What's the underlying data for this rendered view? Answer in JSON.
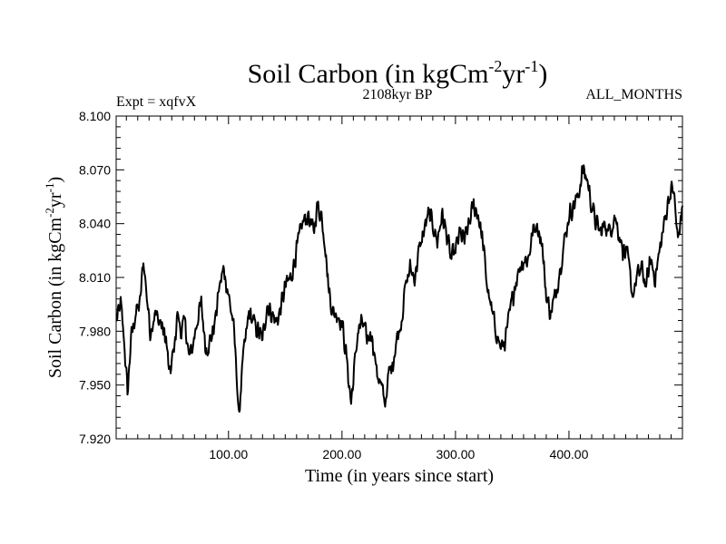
{
  "chart_data": {
    "type": "line",
    "title": "Soil Carbon (in kgCm",
    "title_exp1": "-2",
    "title_mid": "yr",
    "title_exp2": "-1",
    "title_end": ")",
    "subtitle_left": "Expt = xqfvX",
    "subtitle_center": "2108kyr BP",
    "subtitle_right": "ALL_MONTHS",
    "xlabel": "Time (in years since start)",
    "ylabel": "Soil Carbon (in kgCm",
    "ylabel_exp1": "-2",
    "ylabel_mid": "yr",
    "ylabel_exp2": "-1",
    "ylabel_end": ")",
    "xlim": [
      1,
      500
    ],
    "ylim": [
      7.92,
      8.1
    ],
    "xticks": [
      100,
      200,
      300,
      400
    ],
    "xtick_labels": [
      "100.00",
      "200.00",
      "300.00",
      "400.00"
    ],
    "yticks": [
      7.92,
      7.95,
      7.98,
      8.01,
      8.04,
      8.07,
      8.1
    ],
    "ytick_labels": [
      "7.920",
      "7.950",
      "7.980",
      "8.010",
      "8.040",
      "8.070",
      "8.100"
    ],
    "series_color": "#000000",
    "series": [
      {
        "name": "Soil Carbon",
        "keypoints": [
          [
            1,
            7.985
          ],
          [
            5,
            7.995
          ],
          [
            8,
            7.975
          ],
          [
            11,
            7.945
          ],
          [
            14,
            7.975
          ],
          [
            18,
            7.99
          ],
          [
            22,
            7.995
          ],
          [
            25,
            8.02
          ],
          [
            28,
            8.0
          ],
          [
            31,
            7.98
          ],
          [
            35,
            7.99
          ],
          [
            40,
            7.985
          ],
          [
            45,
            7.975
          ],
          [
            48,
            7.955
          ],
          [
            52,
            7.97
          ],
          [
            55,
            7.99
          ],
          [
            58,
            7.98
          ],
          [
            62,
            7.985
          ],
          [
            65,
            7.965
          ],
          [
            68,
            7.97
          ],
          [
            72,
            7.985
          ],
          [
            76,
            7.995
          ],
          [
            80,
            7.97
          ],
          [
            84,
            7.975
          ],
          [
            88,
            7.985
          ],
          [
            92,
            8.005
          ],
          [
            96,
            8.015
          ],
          [
            100,
            8.0
          ],
          [
            104,
            7.985
          ],
          [
            107,
            7.96
          ],
          [
            109,
            7.93
          ],
          [
            112,
            7.96
          ],
          [
            115,
            7.975
          ],
          [
            118,
            7.99
          ],
          [
            122,
            7.985
          ],
          [
            126,
            7.98
          ],
          [
            130,
            7.975
          ],
          [
            134,
            7.995
          ],
          [
            138,
            7.99
          ],
          [
            142,
            7.985
          ],
          [
            145,
            7.99
          ],
          [
            150,
            8.005
          ],
          [
            155,
            8.01
          ],
          [
            160,
            8.025
          ],
          [
            165,
            8.04
          ],
          [
            170,
            8.045
          ],
          [
            175,
            8.035
          ],
          [
            178,
            8.05
          ],
          [
            182,
            8.045
          ],
          [
            185,
            8.03
          ],
          [
            188,
            8.005
          ],
          [
            192,
            7.99
          ],
          [
            196,
            7.99
          ],
          [
            200,
            7.985
          ],
          [
            204,
            7.965
          ],
          [
            208,
            7.94
          ],
          [
            211,
            7.96
          ],
          [
            214,
            7.98
          ],
          [
            218,
            7.985
          ],
          [
            222,
            7.975
          ],
          [
            226,
            7.98
          ],
          [
            230,
            7.96
          ],
          [
            234,
            7.95
          ],
          [
            238,
            7.94
          ],
          [
            241,
            7.955
          ],
          [
            244,
            7.96
          ],
          [
            248,
            7.975
          ],
          [
            252,
            7.985
          ],
          [
            256,
            8.005
          ],
          [
            260,
            8.015
          ],
          [
            264,
            8.01
          ],
          [
            268,
            8.025
          ],
          [
            272,
            8.035
          ],
          [
            276,
            8.045
          ],
          [
            280,
            8.04
          ],
          [
            284,
            8.03
          ],
          [
            288,
            8.045
          ],
          [
            292,
            8.035
          ],
          [
            296,
            8.02
          ],
          [
            300,
            8.025
          ],
          [
            304,
            8.035
          ],
          [
            308,
            8.03
          ],
          [
            312,
            8.04
          ],
          [
            316,
            8.05
          ],
          [
            320,
            8.045
          ],
          [
            324,
            8.03
          ],
          [
            328,
            8.005
          ],
          [
            332,
            7.99
          ],
          [
            336,
            7.98
          ],
          [
            340,
            7.97
          ],
          [
            344,
            7.975
          ],
          [
            348,
            7.99
          ],
          [
            352,
            8.005
          ],
          [
            356,
            8.015
          ],
          [
            360,
            8.02
          ],
          [
            364,
            8.02
          ],
          [
            368,
            8.035
          ],
          [
            372,
            8.04
          ],
          [
            376,
            8.03
          ],
          [
            380,
            8.0
          ],
          [
            384,
            7.99
          ],
          [
            388,
            8.0
          ],
          [
            392,
            8.015
          ],
          [
            396,
            8.03
          ],
          [
            400,
            8.045
          ],
          [
            404,
            8.05
          ],
          [
            408,
            8.055
          ],
          [
            412,
            8.07
          ],
          [
            416,
            8.065
          ],
          [
            420,
            8.05
          ],
          [
            424,
            8.04
          ],
          [
            428,
            8.035
          ],
          [
            432,
            8.04
          ],
          [
            436,
            8.035
          ],
          [
            440,
            8.045
          ],
          [
            444,
            8.035
          ],
          [
            448,
            8.025
          ],
          [
            452,
            8.02
          ],
          [
            456,
            8.0
          ],
          [
            460,
            8.01
          ],
          [
            464,
            8.015
          ],
          [
            468,
            8.005
          ],
          [
            472,
            8.02
          ],
          [
            476,
            8.01
          ],
          [
            480,
            8.025
          ],
          [
            484,
            8.04
          ],
          [
            488,
            8.055
          ],
          [
            492,
            8.06
          ],
          [
            496,
            8.03
          ],
          [
            500,
            8.05
          ]
        ]
      }
    ]
  }
}
